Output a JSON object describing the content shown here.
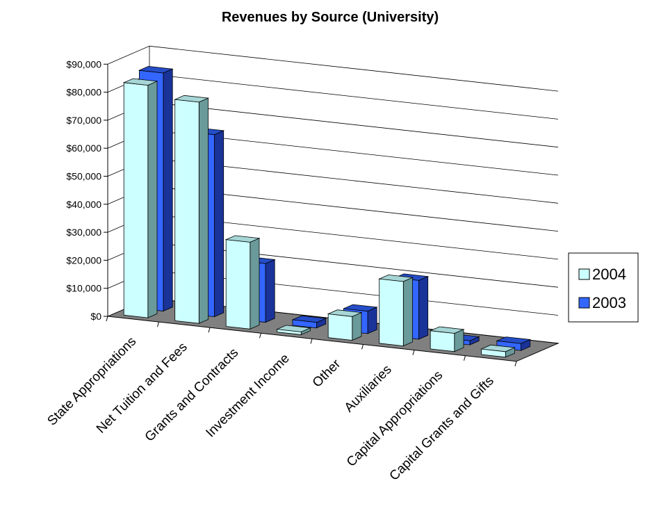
{
  "chart_data": {
    "type": "bar",
    "title": "Revenues by Source (University)",
    "categories": [
      "State Appropriations",
      "Net Tuition and Fees",
      "Grants and Contracts",
      "Investment Income",
      "Other",
      "Auxiliaries",
      "Capital Appropriations",
      "Capital Grants and Gifts"
    ],
    "series": [
      {
        "name": "2004",
        "values": [
          83000,
          79000,
          31000,
          1000,
          8500,
          23000,
          6500,
          2000
        ]
      },
      {
        "name": "2003",
        "values": [
          85000,
          65000,
          21000,
          2000,
          8000,
          21000,
          1500,
          2500
        ]
      }
    ],
    "ylim": [
      0,
      90000
    ],
    "yticks": [
      "$0",
      "$10,000",
      "$20,000",
      "$30,000",
      "$40,000",
      "$50,000",
      "$60,000",
      "$70,000",
      "$80,000",
      "$90,000"
    ],
    "xlabel": "",
    "ylabel": "",
    "grid": true,
    "legend_position": "right",
    "colors": {
      "2004_front": "#ccffff",
      "2004_side": "#6a9a9a",
      "2004_top": "#a6d6d6",
      "2003_front": "#3366ff",
      "2003_side": "#1a3399",
      "2003_top": "#254dc8",
      "floor": "#808080",
      "gridline": "#000000"
    }
  }
}
